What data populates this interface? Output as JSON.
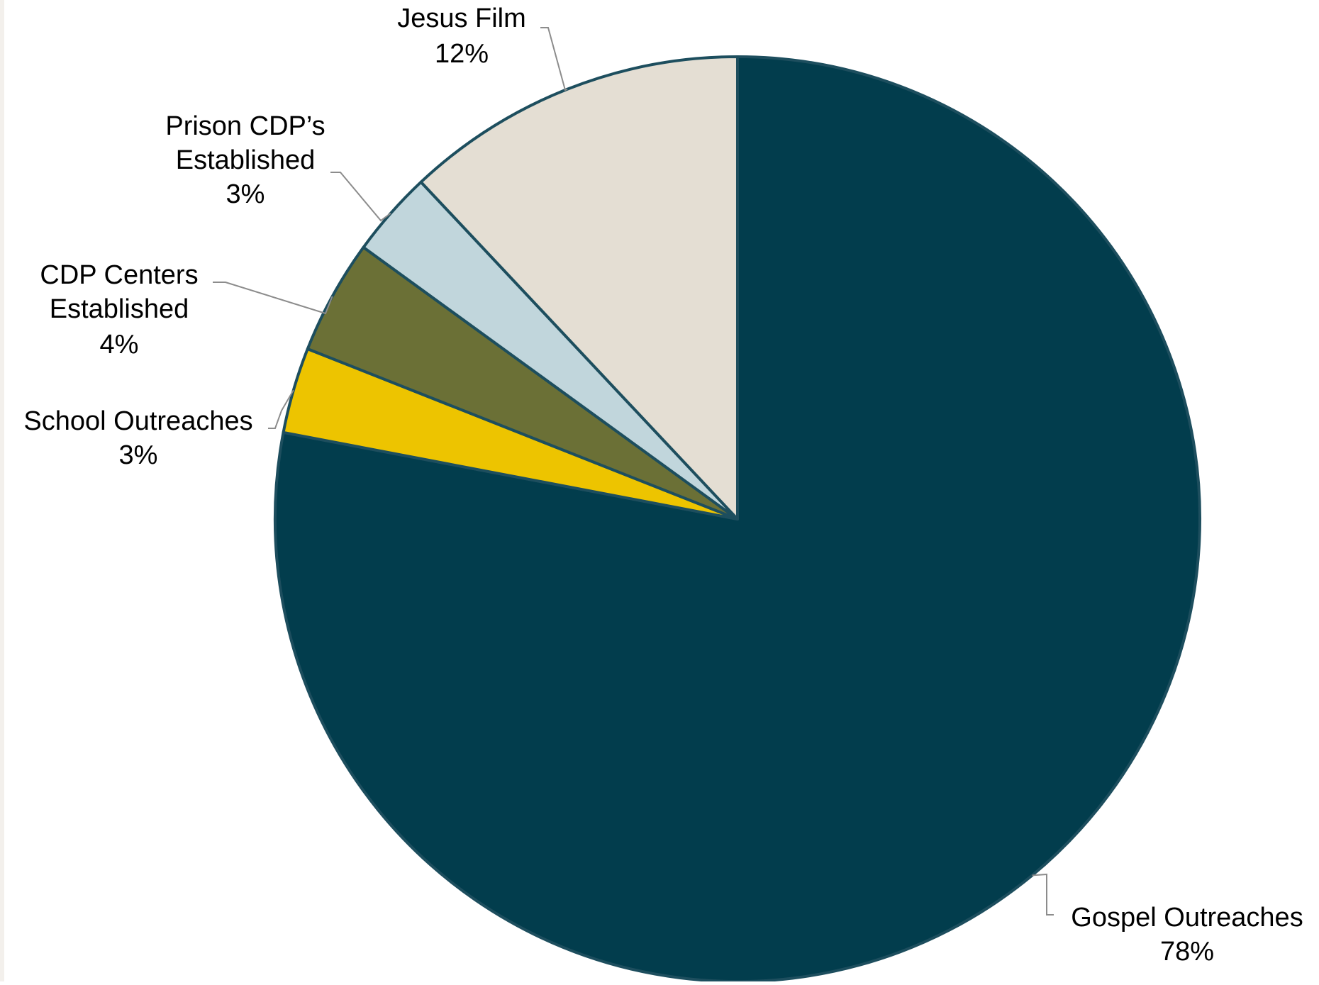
{
  "chart_data": {
    "type": "pie",
    "title": "",
    "start_angle_deg": 0,
    "direction": "clockwise",
    "slices": [
      {
        "label": "Gospel Outreaches",
        "value": 78,
        "value_label": "78%",
        "color": "#023d4d"
      },
      {
        "label": "School Outreaches",
        "value": 3,
        "value_label": "3%",
        "color": "#edc400"
      },
      {
        "label": "CDP Centers Established",
        "value": 4,
        "value_label": "4%",
        "color": "#6b7036"
      },
      {
        "label": "Prison CDP’s Established",
        "value": 3,
        "value_label": "3%",
        "color": "#c1d6dc"
      },
      {
        "label": "Jesus Film",
        "value": 12,
        "value_label": "12%",
        "color": "#e4ded3"
      }
    ],
    "slice_border_color": "#1d4e5e",
    "leader_line_color": "#8c8c8c"
  }
}
